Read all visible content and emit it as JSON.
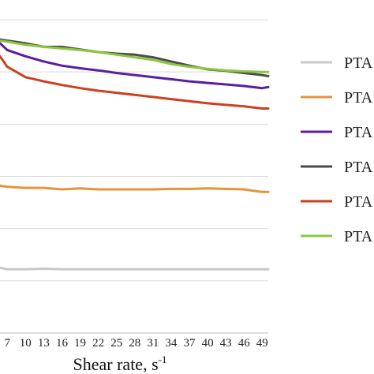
{
  "chart_data": {
    "type": "line",
    "title": "",
    "xlabel": "Shear rate, s",
    "xlabel_superscript": "-1",
    "ylabel": "",
    "x_ticks": [
      7,
      10,
      13,
      16,
      19,
      22,
      25,
      28,
      31,
      34,
      37,
      40,
      43,
      46,
      49
    ],
    "x_tick_labels": [
      "7",
      "10",
      "13",
      "16",
      "19",
      "22",
      "25",
      "28",
      "31",
      "34",
      "37",
      "40",
      "43",
      "46",
      "49"
    ],
    "xlim": [
      5.8,
      50
    ],
    "ylim": [
      0,
      6
    ],
    "grid": "horizontal",
    "legend_position": "right",
    "series": [
      {
        "name": "PTA",
        "color": "#c8c8c8",
        "x": [
          5.8,
          7,
          10,
          13,
          16,
          19,
          22,
          25,
          28,
          31,
          34,
          37,
          40,
          43,
          46,
          49,
          50
        ],
        "values": [
          1.25,
          1.22,
          1.22,
          1.23,
          1.22,
          1.22,
          1.22,
          1.22,
          1.22,
          1.22,
          1.22,
          1.22,
          1.22,
          1.22,
          1.22,
          1.22,
          1.22
        ]
      },
      {
        "name": "PTA",
        "color": "#e5943a",
        "x": [
          5.8,
          7,
          10,
          13,
          16,
          19,
          22,
          25,
          28,
          31,
          34,
          37,
          40,
          43,
          46,
          49,
          50
        ],
        "values": [
          2.82,
          2.8,
          2.78,
          2.78,
          2.75,
          2.77,
          2.75,
          2.75,
          2.75,
          2.75,
          2.76,
          2.76,
          2.77,
          2.76,
          2.75,
          2.7,
          2.7
        ]
      },
      {
        "name": "PTA",
        "color": "#5b1e9e",
        "x": [
          5.8,
          7,
          10,
          13,
          16,
          19,
          22,
          25,
          28,
          31,
          34,
          37,
          40,
          43,
          46,
          49,
          50
        ],
        "values": [
          5.55,
          5.42,
          5.3,
          5.2,
          5.12,
          5.07,
          5.03,
          4.98,
          4.94,
          4.9,
          4.86,
          4.82,
          4.79,
          4.76,
          4.73,
          4.69,
          4.71
        ]
      },
      {
        "name": "PTA",
        "color": "#4a4a4a",
        "x": [
          5.8,
          7,
          10,
          13,
          16,
          19,
          22,
          25,
          28,
          31,
          34,
          37,
          40,
          43,
          46,
          49,
          50
        ],
        "values": [
          5.62,
          5.6,
          5.55,
          5.48,
          5.48,
          5.43,
          5.38,
          5.35,
          5.33,
          5.28,
          5.2,
          5.12,
          5.05,
          5.02,
          4.98,
          4.94,
          4.92
        ]
      },
      {
        "name": "PTA",
        "color": "#cc4020",
        "x": [
          5.8,
          7,
          10,
          13,
          16,
          19,
          22,
          25,
          28,
          31,
          34,
          37,
          40,
          43,
          46,
          49,
          50
        ],
        "values": [
          5.3,
          5.1,
          4.9,
          4.82,
          4.75,
          4.69,
          4.64,
          4.6,
          4.56,
          4.52,
          4.48,
          4.44,
          4.4,
          4.37,
          4.34,
          4.3,
          4.3
        ]
      },
      {
        "name": "PTA",
        "color": "#8cc63f",
        "x": [
          5.8,
          7,
          10,
          13,
          16,
          19,
          22,
          25,
          28,
          31,
          34,
          37,
          40,
          43,
          46,
          49,
          50
        ],
        "values": [
          5.6,
          5.58,
          5.52,
          5.48,
          5.45,
          5.42,
          5.38,
          5.33,
          5.28,
          5.23,
          5.15,
          5.1,
          5.06,
          5.03,
          5.01,
          5.0,
          5.0
        ]
      }
    ]
  }
}
